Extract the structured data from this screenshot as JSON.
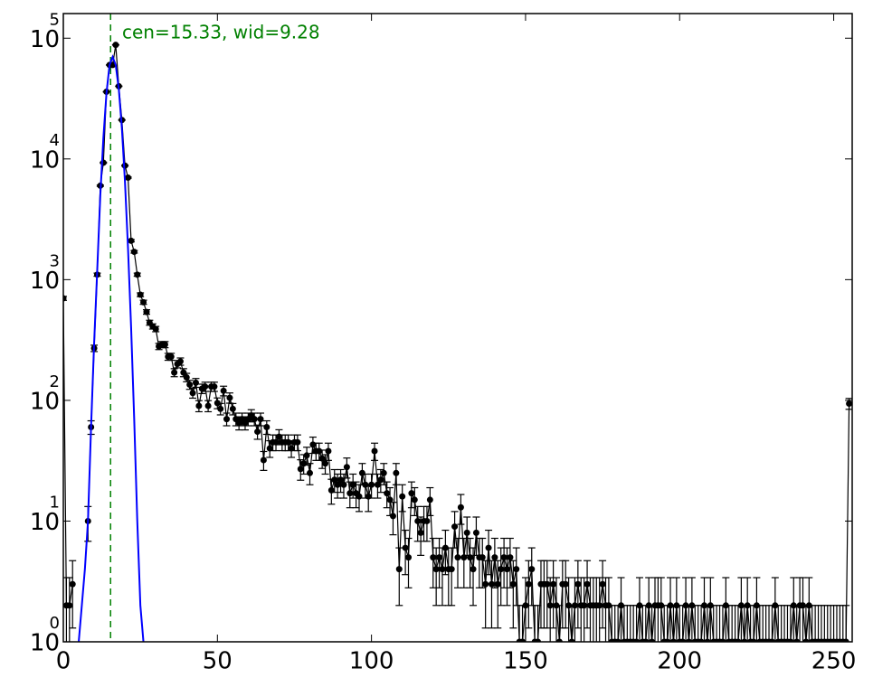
{
  "chart_data": {
    "type": "errorbar",
    "annotation": "cen=15.33, wid=9.28",
    "vline": {
      "value": 15.33,
      "color": "#008000"
    },
    "log_y": true,
    "xlim": [
      0,
      256
    ],
    "ylim": [
      1,
      160000
    ],
    "xticks": [
      0,
      50,
      100,
      150,
      200,
      250
    ],
    "yticks": [
      {
        "value": 1,
        "label": "10",
        "exponent": "0"
      },
      {
        "value": 10,
        "label": "10",
        "exponent": "1"
      },
      {
        "value": 100,
        "label": "10",
        "exponent": "2"
      },
      {
        "value": 1000,
        "label": "10",
        "exponent": "3"
      },
      {
        "value": 10000,
        "label": "10",
        "exponent": "4"
      },
      {
        "value": 100000,
        "label": "10",
        "exponent": "5"
      }
    ],
    "series": [
      {
        "color": "#000000",
        "x": [
          0,
          1,
          2,
          3,
          4,
          5,
          6,
          7,
          8,
          9,
          10,
          11,
          12,
          13,
          14,
          15,
          16,
          17,
          18,
          19,
          20,
          21,
          22,
          23,
          24,
          25,
          26,
          27,
          28,
          29,
          30,
          31,
          32,
          33,
          34,
          35,
          36,
          37,
          38,
          39,
          40,
          41,
          42,
          43,
          44,
          45,
          46,
          47,
          48,
          49,
          50,
          51,
          52,
          53,
          54,
          55,
          56,
          57,
          58,
          59,
          60,
          61,
          62,
          63,
          64,
          65,
          66,
          67,
          68,
          69,
          70,
          71,
          72,
          73,
          74,
          75,
          76,
          77,
          78,
          79,
          80,
          81,
          82,
          83,
          84,
          85,
          86,
          87,
          88,
          89,
          90,
          91,
          92,
          93,
          94,
          95,
          96,
          97,
          98,
          99,
          100,
          101,
          102,
          103,
          104,
          105,
          106,
          107,
          108,
          109,
          110,
          111,
          112,
          113,
          114,
          115,
          116,
          117,
          118,
          119,
          120,
          121,
          122,
          123,
          124,
          125,
          126,
          127,
          128,
          129,
          130,
          131,
          132,
          133,
          134,
          135,
          136,
          137,
          138,
          139,
          140,
          141,
          142,
          143,
          144,
          145,
          146,
          147,
          148,
          149,
          150,
          151,
          152,
          153,
          154,
          155,
          156,
          157,
          158,
          159,
          160,
          161,
          162,
          163,
          164,
          165,
          166,
          167,
          168,
          169,
          170,
          171,
          172,
          173,
          174,
          175,
          176,
          177,
          178,
          179,
          180,
          181,
          182,
          183,
          184,
          185,
          186,
          187,
          188,
          189,
          190,
          191,
          192,
          193,
          194,
          195,
          196,
          197,
          198,
          199,
          200,
          201,
          202,
          203,
          204,
          205,
          206,
          207,
          208,
          209,
          210,
          211,
          212,
          213,
          214,
          215,
          216,
          217,
          218,
          219,
          220,
          221,
          222,
          223,
          224,
          225,
          226,
          227,
          228,
          229,
          230,
          231,
          232,
          233,
          234,
          235,
          236,
          237,
          238,
          239,
          240,
          241,
          242,
          243,
          244,
          245,
          246,
          247,
          248,
          249,
          250,
          251,
          252,
          253,
          254,
          255
        ],
        "values": [
          700,
          2,
          2,
          3,
          null,
          null,
          null,
          null,
          10,
          60,
          270,
          1100,
          6000,
          9300,
          36000,
          60000,
          60000,
          88000,
          40000,
          21000,
          8800,
          7000,
          2100,
          1700,
          1100,
          750,
          650,
          540,
          440,
          410,
          390,
          280,
          290,
          290,
          230,
          230,
          170,
          200,
          210,
          170,
          155,
          135,
          115,
          140,
          90,
          125,
          130,
          90,
          130,
          130,
          95,
          85,
          120,
          70,
          105,
          85,
          70,
          65,
          70,
          65,
          70,
          75,
          70,
          55,
          70,
          32,
          60,
          40,
          45,
          45,
          50,
          45,
          45,
          45,
          40,
          45,
          45,
          27,
          30,
          35,
          25,
          43,
          38,
          38,
          33,
          30,
          38,
          18,
          22,
          20,
          22,
          20,
          28,
          17,
          20,
          17,
          16,
          25,
          20,
          16,
          20,
          38,
          20,
          22,
          25,
          17,
          15,
          11,
          25,
          4,
          16,
          6,
          5,
          17,
          15,
          10,
          8,
          10,
          10,
          15,
          5,
          4,
          5,
          4,
          6,
          4,
          4,
          9,
          5,
          13,
          5,
          8,
          5,
          4,
          8,
          5,
          5,
          3,
          6,
          3,
          5,
          3,
          4,
          5,
          4,
          5,
          3,
          4,
          1,
          1,
          2,
          3,
          4,
          1,
          1,
          3,
          3,
          3,
          2,
          3,
          2,
          1,
          3,
          3,
          2,
          1,
          2,
          3,
          2,
          2,
          3,
          2,
          2,
          2,
          2,
          3,
          2,
          2,
          1,
          1,
          1,
          2,
          1,
          1,
          1,
          1,
          1,
          2,
          1,
          1,
          2,
          1,
          2,
          2,
          2,
          1,
          1,
          2,
          1,
          2,
          1,
          1,
          2,
          1,
          2,
          1,
          1,
          1,
          2,
          1,
          2,
          1,
          1,
          1,
          1,
          2,
          1,
          1,
          1,
          1,
          2,
          1,
          2,
          1,
          1,
          2,
          1,
          1,
          1,
          1,
          1,
          2,
          1,
          1,
          1,
          1,
          1,
          2,
          1,
          2,
          2,
          1,
          2,
          1,
          1,
          1,
          1,
          1,
          1,
          1,
          1,
          1,
          1,
          1,
          1,
          94
        ],
        "errors": [
          26.5,
          1.4,
          1.4,
          1.7,
          null,
          null,
          null,
          null,
          3.2,
          7.7,
          16.4,
          33.2,
          77.5,
          96.4,
          189.7,
          244.9,
          244.9,
          296.6,
          200,
          144.9,
          93.8,
          83.7,
          45.8,
          41.2,
          33.2,
          27.4,
          25.5,
          23.2,
          21,
          20.2,
          19.7,
          16.7,
          17,
          17,
          15.2,
          15.2,
          13,
          14.1,
          14.5,
          13,
          12.4,
          11.6,
          10.7,
          11.8,
          9.5,
          11.2,
          11.4,
          9.5,
          11.4,
          11.4,
          9.7,
          9.2,
          11,
          8.4,
          10.2,
          9.2,
          8.4,
          8.1,
          8.4,
          8.1,
          8.4,
          8.7,
          8.4,
          7.4,
          8.4,
          5.7,
          7.7,
          6.3,
          6.7,
          6.7,
          7.1,
          6.7,
          6.7,
          6.7,
          6.3,
          6.7,
          6.7,
          5.2,
          5.5,
          5.9,
          5,
          6.6,
          6.2,
          6.2,
          5.7,
          5.5,
          6.2,
          4.2,
          4.7,
          4.5,
          4.7,
          4.5,
          5.3,
          4.1,
          4.5,
          4.1,
          4,
          5,
          4.5,
          4,
          4.5,
          6.2,
          4.5,
          4.7,
          5,
          4.1,
          3.9,
          3.3,
          5,
          2,
          4,
          2.4,
          2.2,
          4.1,
          3.9,
          3.2,
          2.8,
          3.2,
          3.2,
          3.9,
          2.2,
          2,
          2.2,
          2,
          2.4,
          2,
          2,
          3,
          2.2,
          3.6,
          2.2,
          2.8,
          2.2,
          2,
          2.8,
          2.2,
          2.2,
          1.7,
          2.4,
          1.7,
          2.2,
          1.7,
          2,
          2.2,
          2,
          2.2,
          1.7,
          2,
          1,
          1,
          1.4,
          1.7,
          2,
          1,
          1,
          1.7,
          1.7,
          1.7,
          1.4,
          1.7,
          1.4,
          1,
          1.7,
          1.7,
          1.4,
          1,
          1.4,
          1.7,
          1.4,
          1.4,
          1.7,
          1.4,
          1.4,
          1.4,
          1.4,
          1.7,
          1.4,
          1.4,
          1,
          1,
          1,
          1.4,
          1,
          1,
          1,
          1,
          1,
          1.4,
          1,
          1,
          1.4,
          1,
          1.4,
          1.4,
          1.4,
          1,
          1,
          1.4,
          1,
          1.4,
          1,
          1,
          1.4,
          1,
          1.4,
          1,
          1,
          1,
          1.4,
          1,
          1.4,
          1,
          1,
          1,
          1,
          1.4,
          1,
          1,
          1,
          1,
          1.4,
          1,
          1.4,
          1,
          1,
          1.4,
          1,
          1,
          1,
          1,
          1,
          1.4,
          1,
          1,
          1,
          1,
          1,
          1.4,
          1,
          1.4,
          1.4,
          1,
          1.4,
          1,
          1,
          1,
          1,
          1,
          1,
          1,
          1,
          1,
          1,
          1,
          1,
          9.7
        ]
      },
      {
        "color": "#0000ff",
        "kind": "line",
        "x": [
          5,
          6,
          7,
          8,
          9,
          10,
          11,
          12,
          13,
          14,
          15,
          16,
          17,
          18,
          19,
          20,
          21,
          22,
          23,
          24,
          25,
          26
        ],
        "values": [
          1,
          2,
          4,
          10,
          60,
          300,
          1200,
          5000,
          15000,
          35000,
          60000,
          70000,
          60000,
          38000,
          18000,
          6500,
          1800,
          400,
          70,
          10,
          2,
          1
        ]
      }
    ]
  }
}
